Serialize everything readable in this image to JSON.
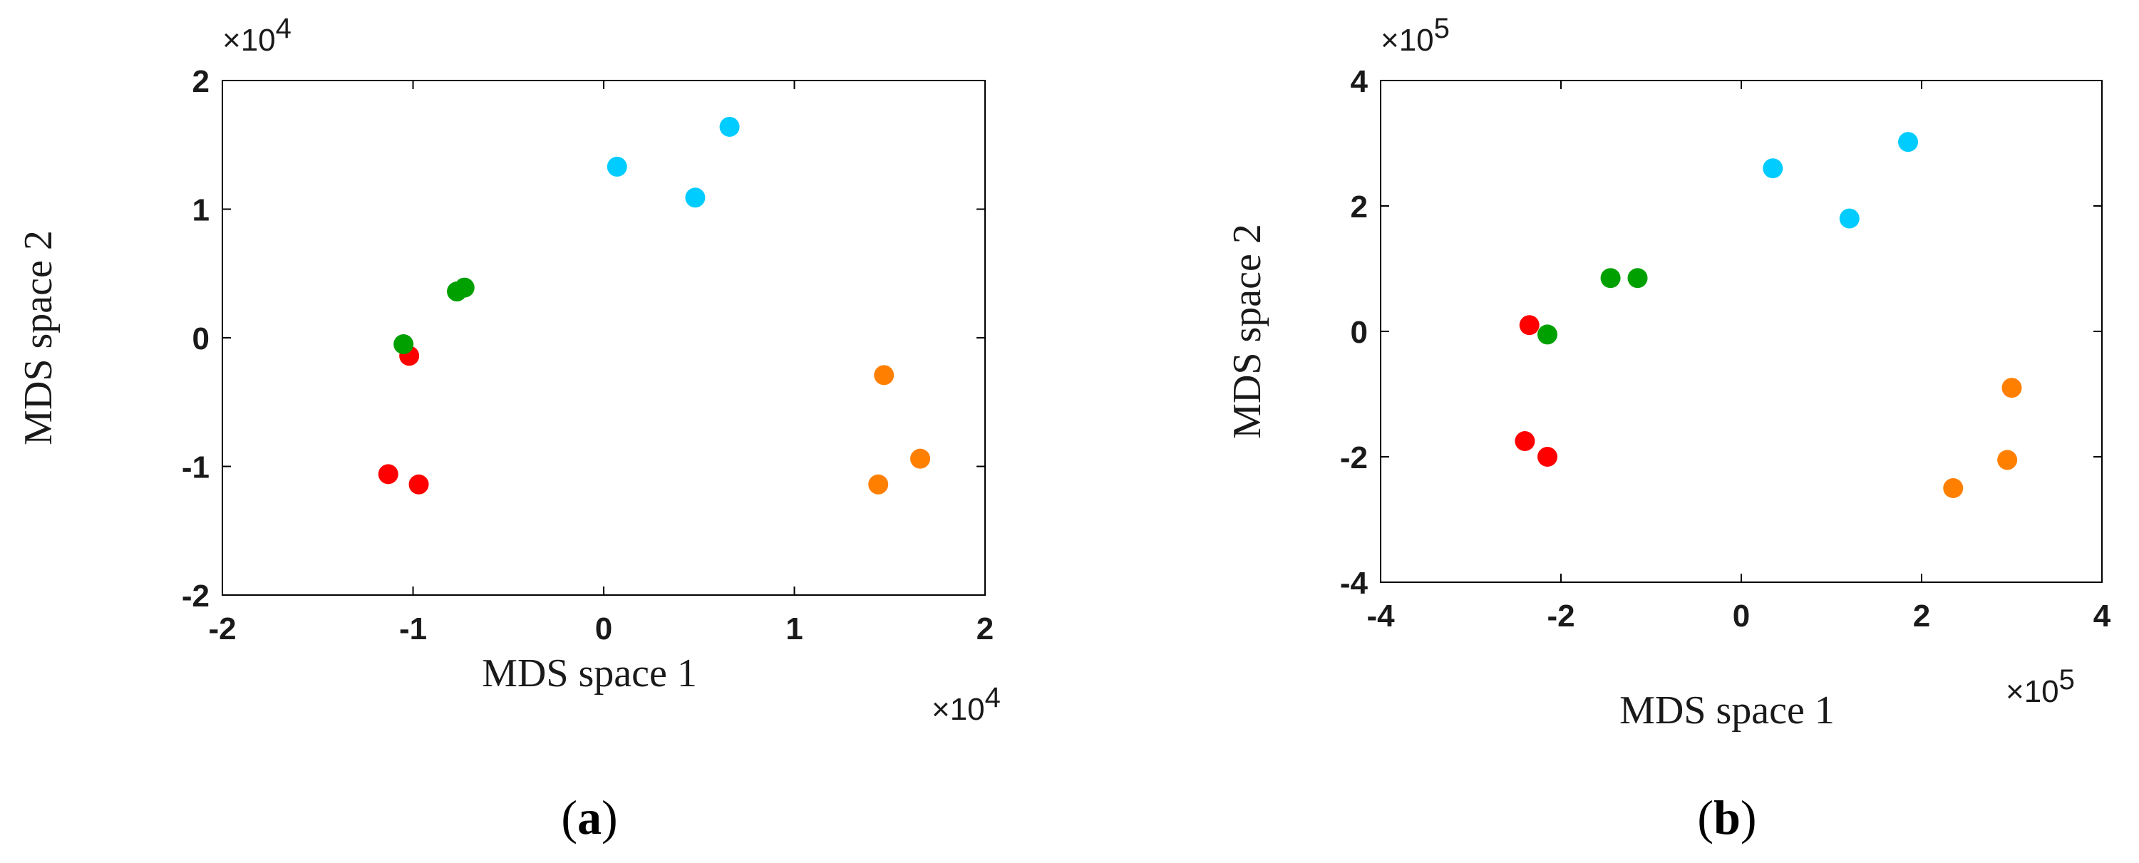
{
  "chart_data": [
    {
      "type": "scatter",
      "panel_label": "a",
      "xlabel": "MDS space 1",
      "ylabel": "MDS space 2",
      "x_multiplier": "×10",
      "x_exponent": "4",
      "y_multiplier": "×10",
      "y_exponent": "4",
      "xlim": [
        -2,
        2
      ],
      "ylim": [
        -2,
        2
      ],
      "xticks": [
        -2,
        -1,
        0,
        1,
        2
      ],
      "yticks": [
        -2,
        -1,
        0,
        1,
        2
      ],
      "xtick_labels": [
        "-2",
        "-1",
        "0",
        "1",
        "2"
      ],
      "ytick_labels": [
        "-2",
        "-1",
        "0",
        "1",
        "2"
      ],
      "series": [
        {
          "color": "#ff0000",
          "points": [
            [
              -1.02,
              -0.14
            ],
            [
              -1.13,
              -1.06
            ],
            [
              -0.97,
              -1.14
            ]
          ]
        },
        {
          "color": "#00a000",
          "points": [
            [
              -1.05,
              -0.05
            ],
            [
              -0.77,
              0.36
            ],
            [
              -0.73,
              0.39
            ]
          ]
        },
        {
          "color": "#00ccff",
          "points": [
            [
              0.07,
              1.33
            ],
            [
              0.48,
              1.09
            ],
            [
              0.66,
              1.64
            ]
          ]
        },
        {
          "color": "#ff7f00",
          "points": [
            [
              1.47,
              -0.29
            ],
            [
              1.66,
              -0.94
            ],
            [
              1.44,
              -1.14
            ]
          ]
        }
      ]
    },
    {
      "type": "scatter",
      "panel_label": "b",
      "xlabel": "MDS space 1",
      "ylabel": "MDS space 2",
      "x_multiplier": "×10",
      "x_exponent": "5",
      "y_multiplier": "×10",
      "y_exponent": "5",
      "xlim": [
        -4,
        4
      ],
      "ylim": [
        -4,
        4
      ],
      "xticks": [
        -4,
        -2,
        0,
        2,
        4
      ],
      "yticks": [
        -4,
        -2,
        0,
        2,
        4
      ],
      "xtick_labels": [
        "-4",
        "-2",
        "0",
        "2",
        "4"
      ],
      "ytick_labels": [
        "-4",
        "-2",
        "0",
        "2",
        "4"
      ],
      "series": [
        {
          "color": "#ff0000",
          "points": [
            [
              -2.35,
              0.1
            ],
            [
              -2.4,
              -1.75
            ],
            [
              -2.15,
              -2.0
            ]
          ]
        },
        {
          "color": "#00a000",
          "points": [
            [
              -2.15,
              -0.05
            ],
            [
              -1.45,
              0.85
            ],
            [
              -1.15,
              0.85
            ]
          ]
        },
        {
          "color": "#00ccff",
          "points": [
            [
              0.35,
              2.6
            ],
            [
              1.2,
              1.8
            ],
            [
              1.85,
              3.02
            ]
          ]
        },
        {
          "color": "#ff7f00",
          "points": [
            [
              3.0,
              -0.9
            ],
            [
              2.95,
              -2.05
            ],
            [
              2.35,
              -2.5
            ]
          ]
        }
      ]
    }
  ]
}
